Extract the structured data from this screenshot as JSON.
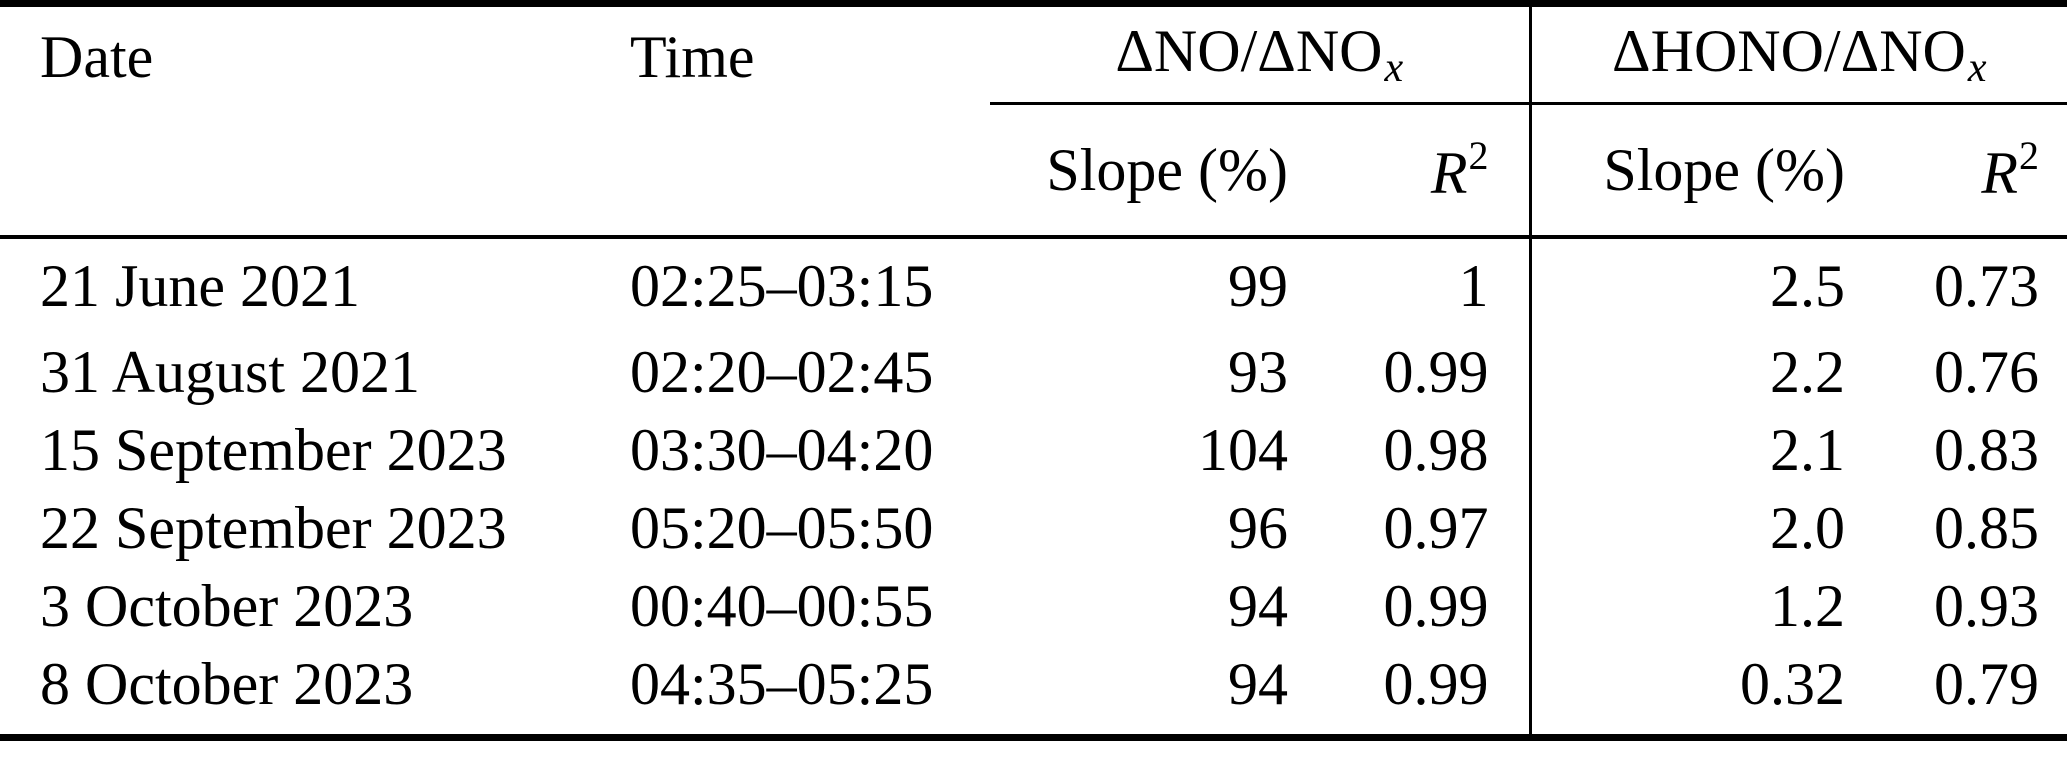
{
  "table": {
    "headers": {
      "date": "Date",
      "time": "Time",
      "group_no_prefix": "ΔNO/ΔNO",
      "group_hono_prefix": "ΔHONO/ΔNO",
      "group_subscript": "x",
      "slope": "Slope (%)",
      "r_symbol": "R",
      "r_exponent": "2"
    },
    "rows": [
      {
        "date": "21 June 2021",
        "time": "02:25–03:15",
        "no_slope": "99",
        "no_r2": "1",
        "hono_slope": "2.5",
        "hono_r2": "0.73"
      },
      {
        "date": "31 August 2021",
        "time": "02:20–02:45",
        "no_slope": "93",
        "no_r2": "0.99",
        "hono_slope": "2.2",
        "hono_r2": "0.76"
      },
      {
        "date": "15 September 2023",
        "time": "03:30–04:20",
        "no_slope": "104",
        "no_r2": "0.98",
        "hono_slope": "2.1",
        "hono_r2": "0.83"
      },
      {
        "date": "22 September 2023",
        "time": "05:20–05:50",
        "no_slope": "96",
        "no_r2": "0.97",
        "hono_slope": "2.0",
        "hono_r2": "0.85"
      },
      {
        "date": "3 October 2023",
        "time": "00:40–00:55",
        "no_slope": "94",
        "no_r2": "0.99",
        "hono_slope": "1.2",
        "hono_r2": "0.93"
      },
      {
        "date": "8 October 2023",
        "time": "04:35–05:25",
        "no_slope": "94",
        "no_r2": "0.99",
        "hono_slope": "0.32",
        "hono_r2": "0.79"
      }
    ],
    "colors": {
      "text": "#000000",
      "background": "#ffffff",
      "rule": "#000000"
    }
  }
}
